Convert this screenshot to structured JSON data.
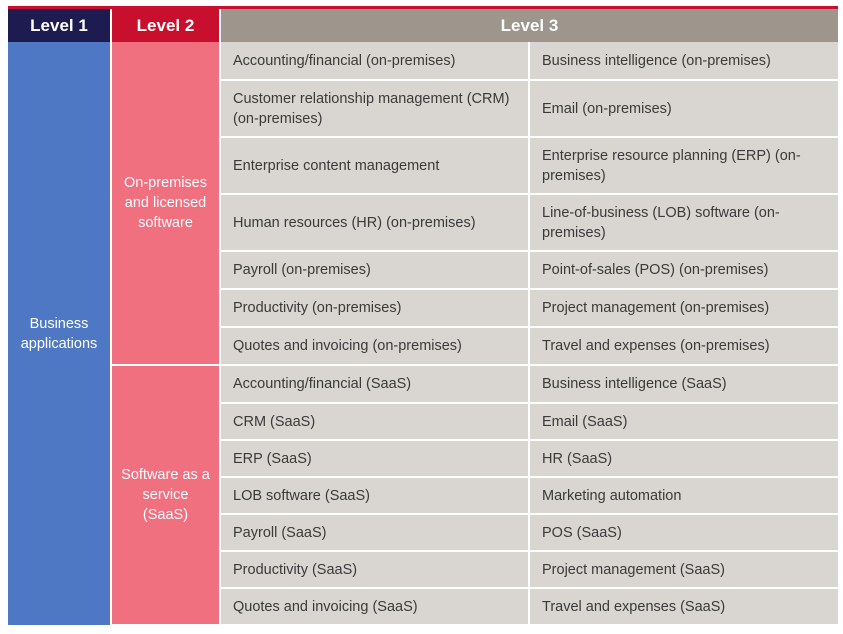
{
  "headers": {
    "level1": "Level 1",
    "level2": "Level 2",
    "level3": "Level 3"
  },
  "level1": {
    "label": "Business applications"
  },
  "groups": [
    {
      "label": "On-premises and licensed software",
      "rows": [
        [
          "Accounting/financial (on-premises)",
          "Business intelligence (on-premises)"
        ],
        [
          "Customer relationship management (CRM) (on-premises)",
          "Email (on-premises)"
        ],
        [
          "Enterprise content management",
          "Enterprise resource planning (ERP) (on-premises)"
        ],
        [
          "Human resources (HR) (on-premises)",
          "Line-of-business (LOB) software (on-premises)"
        ],
        [
          "Payroll (on-premises)",
          "Point-of-sales (POS) (on-premises)"
        ],
        [
          "Productivity (on-premises)",
          "Project management (on-premises)"
        ],
        [
          "Quotes and invoicing (on-premises)",
          "Travel and expenses (on-premises)"
        ]
      ]
    },
    {
      "label": "Software as a service (SaaS)",
      "rows": [
        [
          "Accounting/financial (SaaS)",
          "Business intelligence (SaaS)"
        ],
        [
          "CRM (SaaS)",
          "Email (SaaS)"
        ],
        [
          "ERP (SaaS)",
          "HR (SaaS)"
        ],
        [
          "LOB software (SaaS)",
          "Marketing automation"
        ],
        [
          "Payroll (SaaS)",
          "POS (SaaS)"
        ],
        [
          "Productivity (SaaS)",
          "Project management (SaaS)"
        ],
        [
          "Quotes and invoicing (SaaS)",
          "Travel and expenses (SaaS)"
        ]
      ]
    }
  ],
  "colors": {
    "level1_header": "#1e1b50",
    "level2_header": "#c8102e",
    "level3_header": "#9e958d",
    "level1_cell": "#4f78c4",
    "level2_cell": "#f07080",
    "level3_cell": "#d9d6d2"
  }
}
